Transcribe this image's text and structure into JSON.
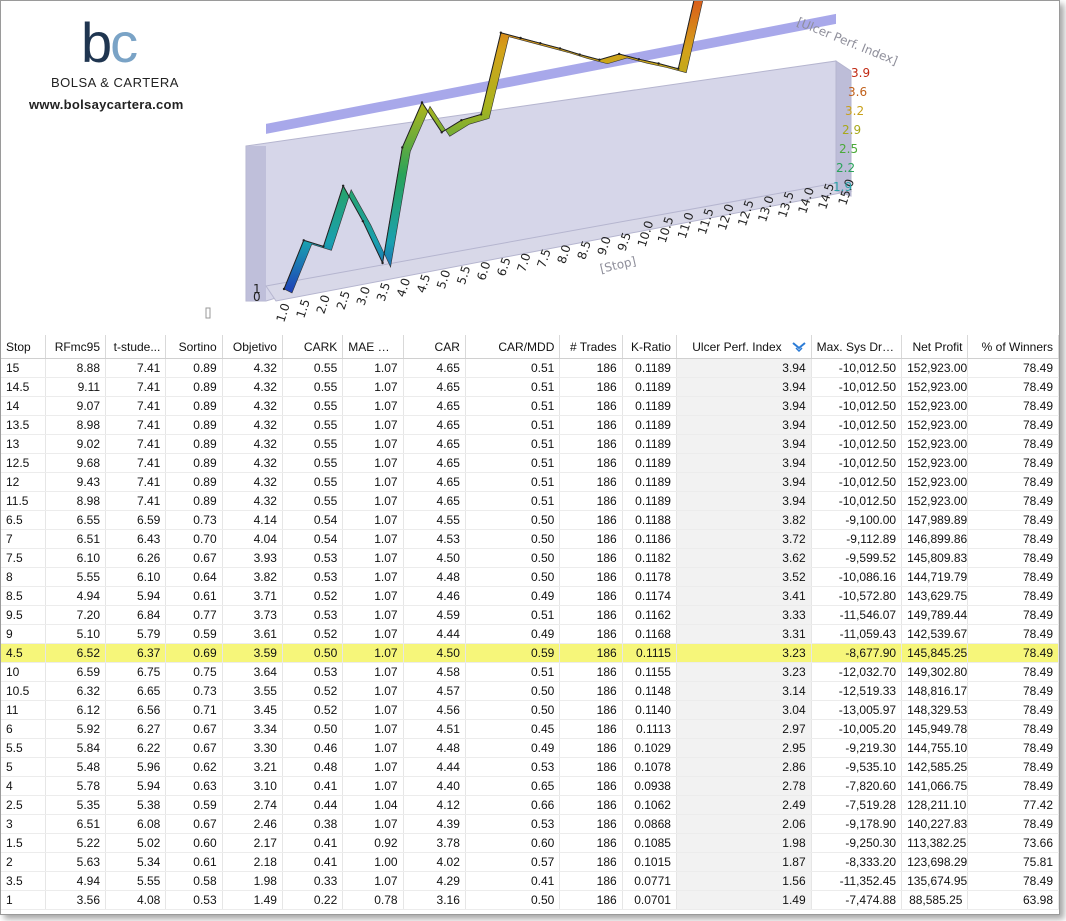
{
  "logo": {
    "mark_b": "b",
    "mark_c": "c",
    "name": "BOLSA & CARTERA",
    "url": "www.bolsaycartera.com"
  },
  "chart_data": {
    "type": "line",
    "x_title": "[Stop]",
    "z_title": "[Ulcer Perf. Index]",
    "x_ticks": [
      "1.0",
      "1.5",
      "2.0",
      "2.5",
      "3.0",
      "3.5",
      "4.0",
      "4.5",
      "5.0",
      "5.5",
      "6.0",
      "6.5",
      "7.0",
      "7.5",
      "8.0",
      "8.5",
      "9.0",
      "9.5",
      "10.0",
      "10.5",
      "11.0",
      "11.5",
      "12.0",
      "12.5",
      "13.0",
      "13.5",
      "14.0",
      "14.5",
      "15.0"
    ],
    "z_ticks": [
      "1.9",
      "2.2",
      "2.5",
      "2.9",
      "3.2",
      "3.6",
      "3.9"
    ],
    "y_ticks": [
      "0",
      "1"
    ],
    "x": [
      1,
      1.5,
      2,
      2.5,
      3,
      3.5,
      4,
      4.5,
      5,
      5.5,
      6,
      6.5,
      7,
      7.5,
      8,
      8.5,
      9,
      9.5,
      10,
      10.5,
      11,
      11.5,
      12,
      12.5,
      13,
      13.5,
      14,
      14.5,
      15
    ],
    "z": [
      1.49,
      1.98,
      1.87,
      2.49,
      2.06,
      1.56,
      2.78,
      3.23,
      2.86,
      2.95,
      2.97,
      3.82,
      3.72,
      3.62,
      3.52,
      3.41,
      3.31,
      3.33,
      3.23,
      3.14,
      3.04,
      3.94,
      3.94,
      3.94,
      3.94,
      3.94,
      3.94,
      3.94,
      3.94
    ],
    "zlim": [
      1.49,
      3.94
    ],
    "xlim": [
      1,
      15
    ],
    "highlight_z": 3.23
  },
  "table": {
    "columns": [
      "Stop",
      "RFmc95",
      "t-stude...",
      "Sortino",
      "Objetivo",
      "CARK",
      "MAE M...",
      "CAR",
      "CAR/MDD",
      "# Trades",
      "K-Ratio",
      "Ulcer Perf. Index",
      "Max. Sys Dra...",
      "Net Profit",
      "% of Winners"
    ],
    "sorted_column": "Ulcer Perf. Index",
    "highlight_row": 15,
    "rows": [
      [
        "15",
        "8.88",
        "7.41",
        "0.89",
        "4.32",
        "0.55",
        "1.07",
        "4.65",
        "0.51",
        "186",
        "0.1189",
        "3.94",
        "-10,012.50",
        "152,923.00",
        "78.49"
      ],
      [
        "14.5",
        "9.11",
        "7.41",
        "0.89",
        "4.32",
        "0.55",
        "1.07",
        "4.65",
        "0.51",
        "186",
        "0.1189",
        "3.94",
        "-10,012.50",
        "152,923.00",
        "78.49"
      ],
      [
        "14",
        "9.07",
        "7.41",
        "0.89",
        "4.32",
        "0.55",
        "1.07",
        "4.65",
        "0.51",
        "186",
        "0.1189",
        "3.94",
        "-10,012.50",
        "152,923.00",
        "78.49"
      ],
      [
        "13.5",
        "8.98",
        "7.41",
        "0.89",
        "4.32",
        "0.55",
        "1.07",
        "4.65",
        "0.51",
        "186",
        "0.1189",
        "3.94",
        "-10,012.50",
        "152,923.00",
        "78.49"
      ],
      [
        "13",
        "9.02",
        "7.41",
        "0.89",
        "4.32",
        "0.55",
        "1.07",
        "4.65",
        "0.51",
        "186",
        "0.1189",
        "3.94",
        "-10,012.50",
        "152,923.00",
        "78.49"
      ],
      [
        "12.5",
        "9.68",
        "7.41",
        "0.89",
        "4.32",
        "0.55",
        "1.07",
        "4.65",
        "0.51",
        "186",
        "0.1189",
        "3.94",
        "-10,012.50",
        "152,923.00",
        "78.49"
      ],
      [
        "12",
        "9.43",
        "7.41",
        "0.89",
        "4.32",
        "0.55",
        "1.07",
        "4.65",
        "0.51",
        "186",
        "0.1189",
        "3.94",
        "-10,012.50",
        "152,923.00",
        "78.49"
      ],
      [
        "11.5",
        "8.98",
        "7.41",
        "0.89",
        "4.32",
        "0.55",
        "1.07",
        "4.65",
        "0.51",
        "186",
        "0.1189",
        "3.94",
        "-10,012.50",
        "152,923.00",
        "78.49"
      ],
      [
        "6.5",
        "6.55",
        "6.59",
        "0.73",
        "4.14",
        "0.54",
        "1.07",
        "4.55",
        "0.50",
        "186",
        "0.1188",
        "3.82",
        "-9,100.00",
        "147,989.89",
        "78.49"
      ],
      [
        "7",
        "6.51",
        "6.43",
        "0.70",
        "4.04",
        "0.54",
        "1.07",
        "4.53",
        "0.50",
        "186",
        "0.1186",
        "3.72",
        "-9,112.89",
        "146,899.86",
        "78.49"
      ],
      [
        "7.5",
        "6.10",
        "6.26",
        "0.67",
        "3.93",
        "0.53",
        "1.07",
        "4.50",
        "0.50",
        "186",
        "0.1182",
        "3.62",
        "-9,599.52",
        "145,809.83",
        "78.49"
      ],
      [
        "8",
        "5.55",
        "6.10",
        "0.64",
        "3.82",
        "0.53",
        "1.07",
        "4.48",
        "0.50",
        "186",
        "0.1178",
        "3.52",
        "-10,086.16",
        "144,719.79",
        "78.49"
      ],
      [
        "8.5",
        "4.94",
        "5.94",
        "0.61",
        "3.71",
        "0.52",
        "1.07",
        "4.46",
        "0.49",
        "186",
        "0.1174",
        "3.41",
        "-10,572.80",
        "143,629.75",
        "78.49"
      ],
      [
        "9.5",
        "7.20",
        "6.84",
        "0.77",
        "3.73",
        "0.53",
        "1.07",
        "4.59",
        "0.51",
        "186",
        "0.1162",
        "3.33",
        "-11,546.07",
        "149,789.44",
        "78.49"
      ],
      [
        "9",
        "5.10",
        "5.79",
        "0.59",
        "3.61",
        "0.52",
        "1.07",
        "4.44",
        "0.49",
        "186",
        "0.1168",
        "3.31",
        "-11,059.43",
        "142,539.67",
        "78.49"
      ],
      [
        "4.5",
        "6.52",
        "6.37",
        "0.69",
        "3.59",
        "0.50",
        "1.07",
        "4.50",
        "0.59",
        "186",
        "0.1115",
        "3.23",
        "-8,677.90",
        "145,845.25",
        "78.49"
      ],
      [
        "10",
        "6.59",
        "6.75",
        "0.75",
        "3.64",
        "0.53",
        "1.07",
        "4.58",
        "0.51",
        "186",
        "0.1155",
        "3.23",
        "-12,032.70",
        "149,302.80",
        "78.49"
      ],
      [
        "10.5",
        "6.32",
        "6.65",
        "0.73",
        "3.55",
        "0.52",
        "1.07",
        "4.57",
        "0.50",
        "186",
        "0.1148",
        "3.14",
        "-12,519.33",
        "148,816.17",
        "78.49"
      ],
      [
        "11",
        "6.12",
        "6.56",
        "0.71",
        "3.45",
        "0.52",
        "1.07",
        "4.56",
        "0.50",
        "186",
        "0.1140",
        "3.04",
        "-13,005.97",
        "148,329.53",
        "78.49"
      ],
      [
        "6",
        "5.92",
        "6.27",
        "0.67",
        "3.34",
        "0.50",
        "1.07",
        "4.51",
        "0.45",
        "186",
        "0.1113",
        "2.97",
        "-10,005.20",
        "145,949.78",
        "78.49"
      ],
      [
        "5.5",
        "5.84",
        "6.22",
        "0.67",
        "3.30",
        "0.46",
        "1.07",
        "4.48",
        "0.49",
        "186",
        "0.1029",
        "2.95",
        "-9,219.30",
        "144,755.10",
        "78.49"
      ],
      [
        "5",
        "5.48",
        "5.96",
        "0.62",
        "3.21",
        "0.48",
        "1.07",
        "4.44",
        "0.53",
        "186",
        "0.1078",
        "2.86",
        "-9,535.10",
        "142,585.25",
        "78.49"
      ],
      [
        "4",
        "5.78",
        "5.94",
        "0.63",
        "3.10",
        "0.41",
        "1.07",
        "4.40",
        "0.65",
        "186",
        "0.0938",
        "2.78",
        "-7,820.60",
        "141,066.75",
        "78.49"
      ],
      [
        "2.5",
        "5.35",
        "5.38",
        "0.59",
        "2.74",
        "0.44",
        "1.04",
        "4.12",
        "0.66",
        "186",
        "0.1062",
        "2.49",
        "-7,519.28",
        "128,211.10",
        "77.42"
      ],
      [
        "3",
        "6.51",
        "6.08",
        "0.67",
        "2.46",
        "0.38",
        "1.07",
        "4.39",
        "0.53",
        "186",
        "0.0868",
        "2.06",
        "-9,178.90",
        "140,227.83",
        "78.49"
      ],
      [
        "1.5",
        "5.22",
        "5.02",
        "0.60",
        "2.17",
        "0.41",
        "0.92",
        "3.78",
        "0.60",
        "186",
        "0.1085",
        "1.98",
        "-9,250.30",
        "113,382.25",
        "73.66"
      ],
      [
        "2",
        "5.63",
        "5.34",
        "0.61",
        "2.18",
        "0.41",
        "1.00",
        "4.02",
        "0.57",
        "186",
        "0.1015",
        "1.87",
        "-8,333.20",
        "123,698.29",
        "75.81"
      ],
      [
        "3.5",
        "4.94",
        "5.55",
        "0.58",
        "1.98",
        "0.33",
        "1.07",
        "4.29",
        "0.41",
        "186",
        "0.0771",
        "1.56",
        "-11,352.45",
        "135,674.95",
        "78.49"
      ],
      [
        "1",
        "3.56",
        "4.08",
        "0.53",
        "1.49",
        "0.22",
        "0.78",
        "3.16",
        "0.50",
        "186",
        "0.0701",
        "1.49",
        "-7,474.88",
        "88,585.25",
        "63.98"
      ]
    ]
  }
}
